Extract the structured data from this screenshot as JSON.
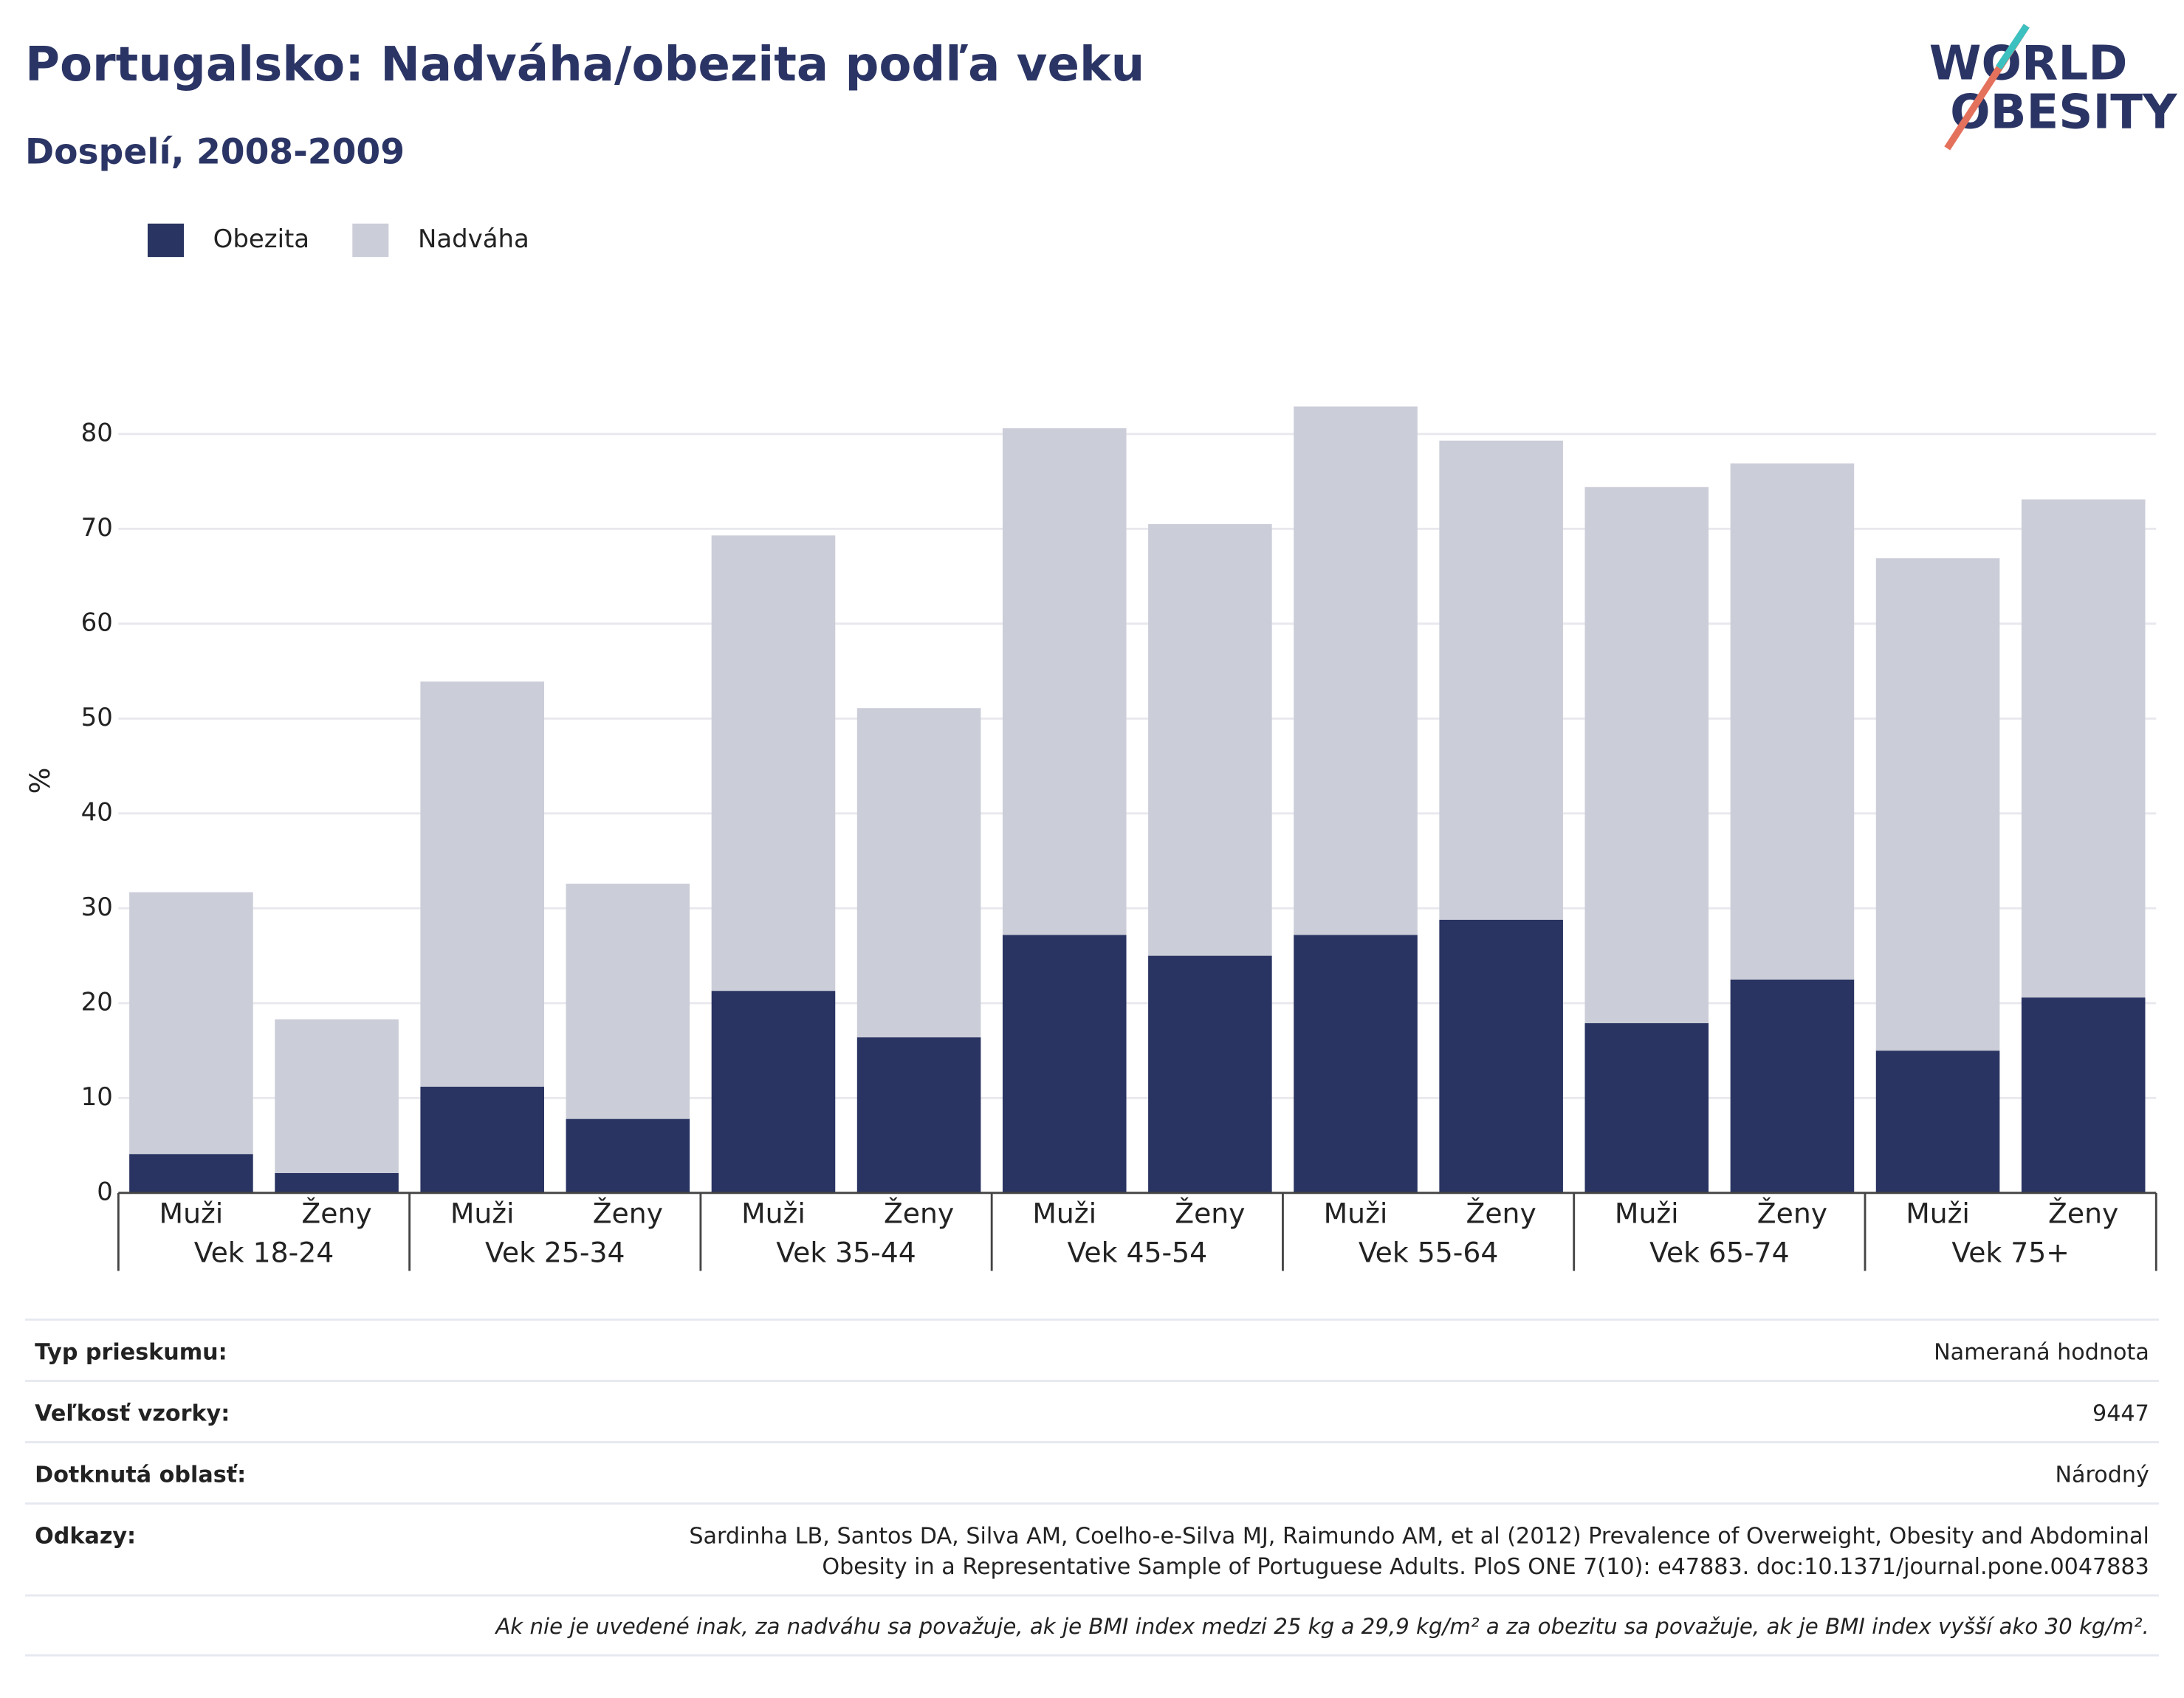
{
  "chart_data": {
    "type": "stacked_bar",
    "title": "Portugalsko: Nadváha/obezita podľa veku",
    "subtitle": "Dospelí, 2008-2009",
    "y_label": "%",
    "categories": [
      "Muži",
      "Ženy",
      "Muži",
      "Ženy",
      "Muži",
      "Ženy",
      "Muži",
      "Ženy",
      "Muži",
      "Ženy",
      "Muži",
      "Ženy",
      "Muži",
      "Ženy"
    ],
    "groups": [
      "Vek 18-24",
      "Vek 25-34",
      "Vek 35-44",
      "Vek 45-54",
      "Vek 55-64",
      "Vek 65-74",
      "Vek 75+"
    ],
    "series": [
      {
        "name": "Obezita",
        "color": "#293462",
        "values": [
          4.1,
          2.1,
          11.2,
          7.8,
          21.3,
          16.4,
          27.2,
          25.0,
          27.2,
          28.8,
          17.9,
          22.5,
          15.0,
          20.6
        ]
      },
      {
        "name": "Nadváha",
        "color": "#cbcdd8",
        "values": [
          27.6,
          16.2,
          42.7,
          24.8,
          48.0,
          34.7,
          53.4,
          45.5,
          55.7,
          50.5,
          56.5,
          54.4,
          51.9,
          52.5
        ]
      }
    ],
    "ylim": [
      0,
      85
    ],
    "yticks": [
      0,
      10,
      20,
      30,
      40,
      50,
      60,
      70,
      80
    ],
    "grid": true
  },
  "logo": [
    "WORLD",
    "OBESITY"
  ],
  "info": {
    "rows": [
      [
        "Typ prieskumu:",
        "Nameraná hodnota"
      ],
      [
        "Veľkosť vzorky:",
        "9447"
      ],
      [
        "Dotknutá oblasť:",
        "Národný"
      ],
      [
        "Odkazy:",
        "Sardinha LB, Santos DA, Silva AM, Coelho-e-Silva MJ, Raimundo AM, et al (2012) Prevalence of Overweight, Obesity and Abdominal",
        "Obesity in a Representative Sample of Portuguese Adults. PloS ONE 7(10): e47883. doc:10.1371/journal.pone.0047883"
      ]
    ],
    "note": "Ak nie je uvedené inak, za nadváhu sa považuje, ak je BMI index medzi 25 kg a 29,9 kg/m² a za obezitu sa považuje, ak je BMI index vyšší ako 30 kg/m²."
  }
}
